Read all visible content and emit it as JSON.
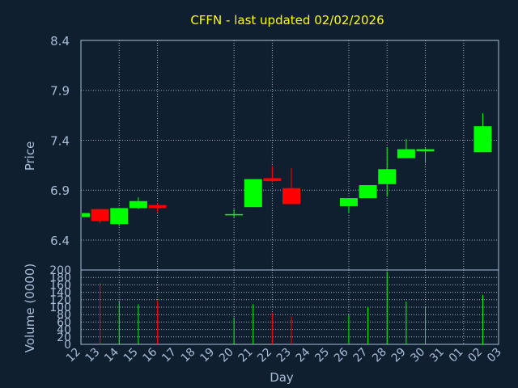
{
  "title": "CFFN - last updated 02/02/2026",
  "chart_data": {
    "type": "candlestick",
    "price_axis": {
      "label": "Price",
      "range": [
        6.1,
        8.4
      ],
      "ticks": [
        "8.4",
        "7.9",
        "7.4",
        "6.9",
        "6.4"
      ]
    },
    "volume_axis": {
      "label": "Volume (0000)",
      "range": [
        0,
        200
      ],
      "ticks": [
        "200",
        "180",
        "160",
        "140",
        "120",
        "100",
        "80",
        "60",
        "40",
        "20",
        "0"
      ]
    },
    "x_axis": {
      "label": "Day",
      "ticks": [
        "12",
        "13",
        "14",
        "15",
        "16",
        "17",
        "18",
        "19",
        "20",
        "21",
        "22",
        "23",
        "24",
        "25",
        "26",
        "27",
        "28",
        "29",
        "30",
        "31",
        "01",
        "02",
        "03"
      ]
    },
    "grid": true,
    "candles": [
      {
        "x": 12,
        "open": 6.63,
        "close": 6.67,
        "high": 6.67,
        "low": 6.63,
        "volume": 0
      },
      {
        "x": 13,
        "open": 6.71,
        "close": 6.59,
        "high": 6.71,
        "low": 6.57,
        "volume": 165
      },
      {
        "x": 14,
        "open": 6.56,
        "close": 6.72,
        "high": 6.72,
        "low": 6.54,
        "volume": 118
      },
      {
        "x": 15,
        "open": 6.72,
        "close": 6.79,
        "high": 6.83,
        "low": 6.71,
        "volume": 108
      },
      {
        "x": 16,
        "open": 6.75,
        "close": 6.72,
        "high": 6.77,
        "low": 6.68,
        "volume": 118
      },
      {
        "x": 20,
        "open": 6.65,
        "close": 6.66,
        "high": 6.71,
        "low": 6.62,
        "volume": 72
      },
      {
        "x": 21,
        "open": 6.73,
        "close": 7.01,
        "high": 7.01,
        "low": 6.73,
        "volume": 108
      },
      {
        "x": 22,
        "open": 7.02,
        "close": 6.99,
        "high": 7.14,
        "low": 6.98,
        "volume": 85
      },
      {
        "x": 23,
        "open": 6.92,
        "close": 6.76,
        "high": 7.12,
        "low": 6.76,
        "volume": 75
      },
      {
        "x": 26,
        "open": 6.74,
        "close": 6.82,
        "high": 6.82,
        "low": 6.67,
        "volume": 80
      },
      {
        "x": 27,
        "open": 6.82,
        "close": 6.95,
        "high": 6.95,
        "low": 6.82,
        "volume": 100
      },
      {
        "x": 28,
        "open": 6.96,
        "close": 7.11,
        "high": 7.33,
        "low": 6.84,
        "volume": 195
      },
      {
        "x": 29,
        "open": 7.22,
        "close": 7.31,
        "high": 7.41,
        "low": 7.22,
        "volume": 115
      },
      {
        "x": 30,
        "open": 7.29,
        "close": 7.31,
        "high": 7.32,
        "low": 7.17,
        "volume": 100
      },
      {
        "x": 33,
        "open": 7.28,
        "close": 7.54,
        "high": 7.67,
        "low": 7.28,
        "volume": 133
      }
    ],
    "colors": {
      "up": "#00ff00",
      "down": "#ff0000",
      "background": "#0f1f30",
      "axis": "#a9bdd6",
      "title": "#ffff00",
      "grid": "#c9d3df"
    }
  }
}
